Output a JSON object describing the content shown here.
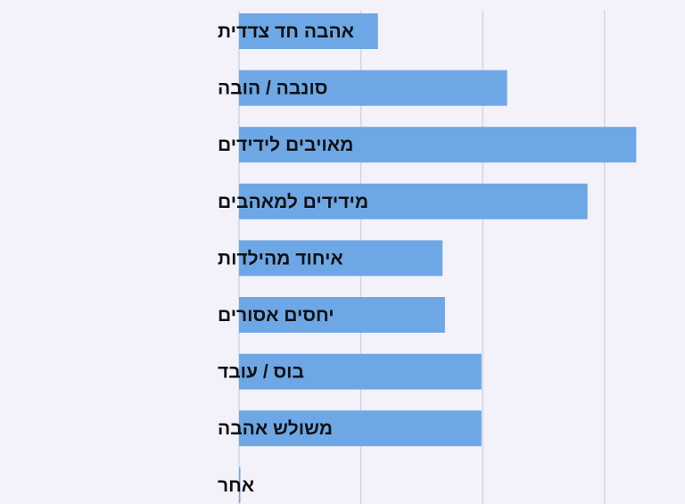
{
  "chart_data": {
    "type": "bar",
    "orientation": "horizontal",
    "title": "",
    "xlabel": "",
    "ylabel": "",
    "categories": [
      "אהבה חד צדדית",
      "סונבה / הובה",
      "מאויבים לידידים",
      "מידידים למאהבים",
      "איחוד מהילדות",
      "יחסים אסורים",
      "בוס / עובד",
      "משולש אהבה",
      "אחר"
    ],
    "values": [
      11.4,
      22.0,
      32.6,
      28.6,
      16.7,
      16.9,
      19.9,
      19.9,
      0.1
    ],
    "xlim": [
      0,
      36.6
    ],
    "gridlines": [
      10,
      20,
      30
    ],
    "grid": true,
    "legend": "none",
    "bar_color": "#6ea7e6",
    "grid_color": "#cfcfd6"
  }
}
